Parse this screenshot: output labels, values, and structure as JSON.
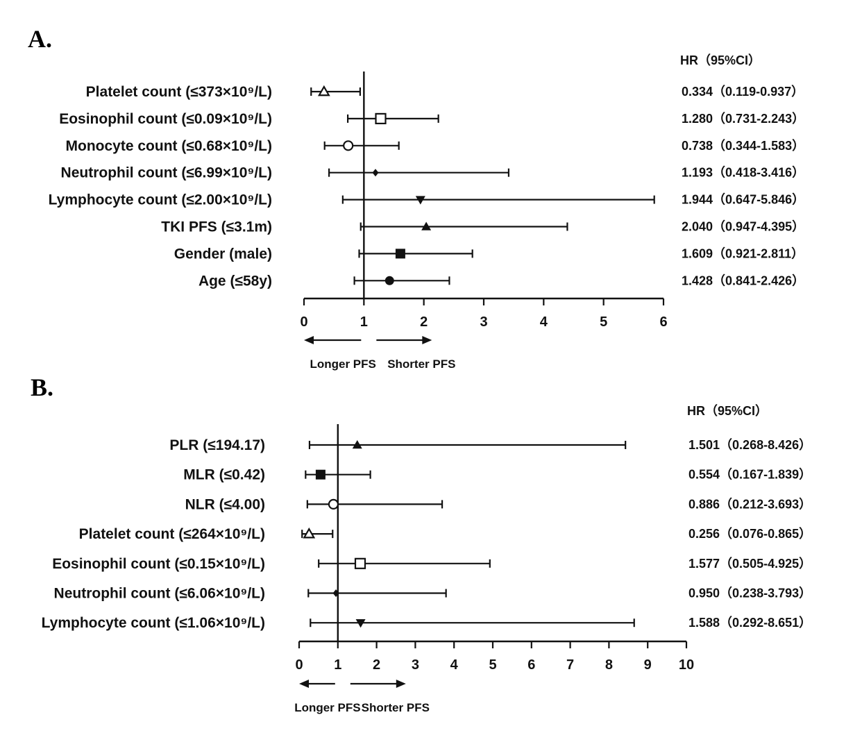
{
  "colors": {
    "ink": "#111111",
    "background": "#ffffff"
  },
  "chart_data": [
    {
      "type": "forest",
      "panel_label": "A.",
      "hr_header": "HR（95%CI）",
      "xlim": [
        0,
        6
      ],
      "xticks": [
        "0",
        "1",
        "2",
        "3",
        "4",
        "5",
        "6"
      ],
      "reference_line": 1,
      "direction_labels": {
        "left": "Longer PFS",
        "right": "Shorter PFS"
      },
      "rows": [
        {
          "label": "Platelet count (≤373×10⁹/L)",
          "hr": 0.334,
          "lo": 0.119,
          "hi": 0.937,
          "marker": "triangle-open",
          "hr_text": "0.334（0.119-0.937）"
        },
        {
          "label": "Eosinophil count (≤0.09×10⁹/L)",
          "hr": 1.28,
          "lo": 0.731,
          "hi": 2.243,
          "marker": "square-open",
          "hr_text": "1.280（0.731-2.243）"
        },
        {
          "label": "Monocyte count (≤0.68×10⁹/L)",
          "hr": 0.738,
          "lo": 0.344,
          "hi": 1.583,
          "marker": "circle-open",
          "hr_text": "0.738（0.344-1.583）"
        },
        {
          "label": "Neutrophil count (≤6.99×10⁹/L)",
          "hr": 1.193,
          "lo": 0.418,
          "hi": 3.416,
          "marker": "diamond",
          "hr_text": "1.193（0.418-3.416）"
        },
        {
          "label": "Lymphocyte count (≤2.00×10⁹/L)",
          "hr": 1.944,
          "lo": 0.647,
          "hi": 5.846,
          "marker": "triangle-down",
          "hr_text": "1.944（0.647-5.846）"
        },
        {
          "label": "TKI PFS (≤3.1m)",
          "hr": 2.04,
          "lo": 0.947,
          "hi": 4.395,
          "marker": "triangle",
          "hr_text": "2.040（0.947-4.395）"
        },
        {
          "label": "Gender (male)",
          "hr": 1.609,
          "lo": 0.921,
          "hi": 2.811,
          "marker": "square",
          "hr_text": "1.609（0.921-2.811）"
        },
        {
          "label": "Age (≤58y)",
          "hr": 1.428,
          "lo": 0.841,
          "hi": 2.426,
          "marker": "circle",
          "hr_text": "1.428（0.841-2.426）"
        }
      ]
    },
    {
      "type": "forest",
      "panel_label": "B.",
      "hr_header": "HR（95%CI）",
      "xlim": [
        0,
        10
      ],
      "xticks": [
        "0",
        "1",
        "2",
        "3",
        "4",
        "5",
        "6",
        "7",
        "8",
        "9",
        "10"
      ],
      "reference_line": 1,
      "direction_labels": {
        "left": "Longer PFS",
        "right": "Shorter PFS"
      },
      "rows": [
        {
          "label": "PLR (≤194.17)",
          "hr": 1.501,
          "lo": 0.268,
          "hi": 8.426,
          "marker": "triangle",
          "hr_text": "1.501（0.268-8.426）"
        },
        {
          "label": "MLR (≤0.42)",
          "hr": 0.554,
          "lo": 0.167,
          "hi": 1.839,
          "marker": "square",
          "hr_text": "0.554（0.167-1.839）"
        },
        {
          "label": "NLR (≤4.00)",
          "hr": 0.886,
          "lo": 0.212,
          "hi": 3.693,
          "marker": "circle-open",
          "hr_text": "0.886（0.212-3.693）"
        },
        {
          "label": "Platelet count (≤264×10⁹/L)",
          "hr": 0.256,
          "lo": 0.076,
          "hi": 0.865,
          "marker": "triangle-open",
          "hr_text": "0.256（0.076-0.865）"
        },
        {
          "label": "Eosinophil count (≤0.15×10⁹/L)",
          "hr": 1.577,
          "lo": 0.505,
          "hi": 4.925,
          "marker": "square-open",
          "hr_text": "1.577（0.505-4.925）"
        },
        {
          "label": "Neutrophil count (≤6.06×10⁹/L)",
          "hr": 0.95,
          "lo": 0.238,
          "hi": 3.793,
          "marker": "diamond",
          "hr_text": "0.950（0.238-3.793）"
        },
        {
          "label": "Lymphocyte count (≤1.06×10⁹/L)",
          "hr": 1.588,
          "lo": 0.292,
          "hi": 8.651,
          "marker": "triangle-down",
          "hr_text": "1.588（0.292-8.651）"
        }
      ]
    }
  ]
}
